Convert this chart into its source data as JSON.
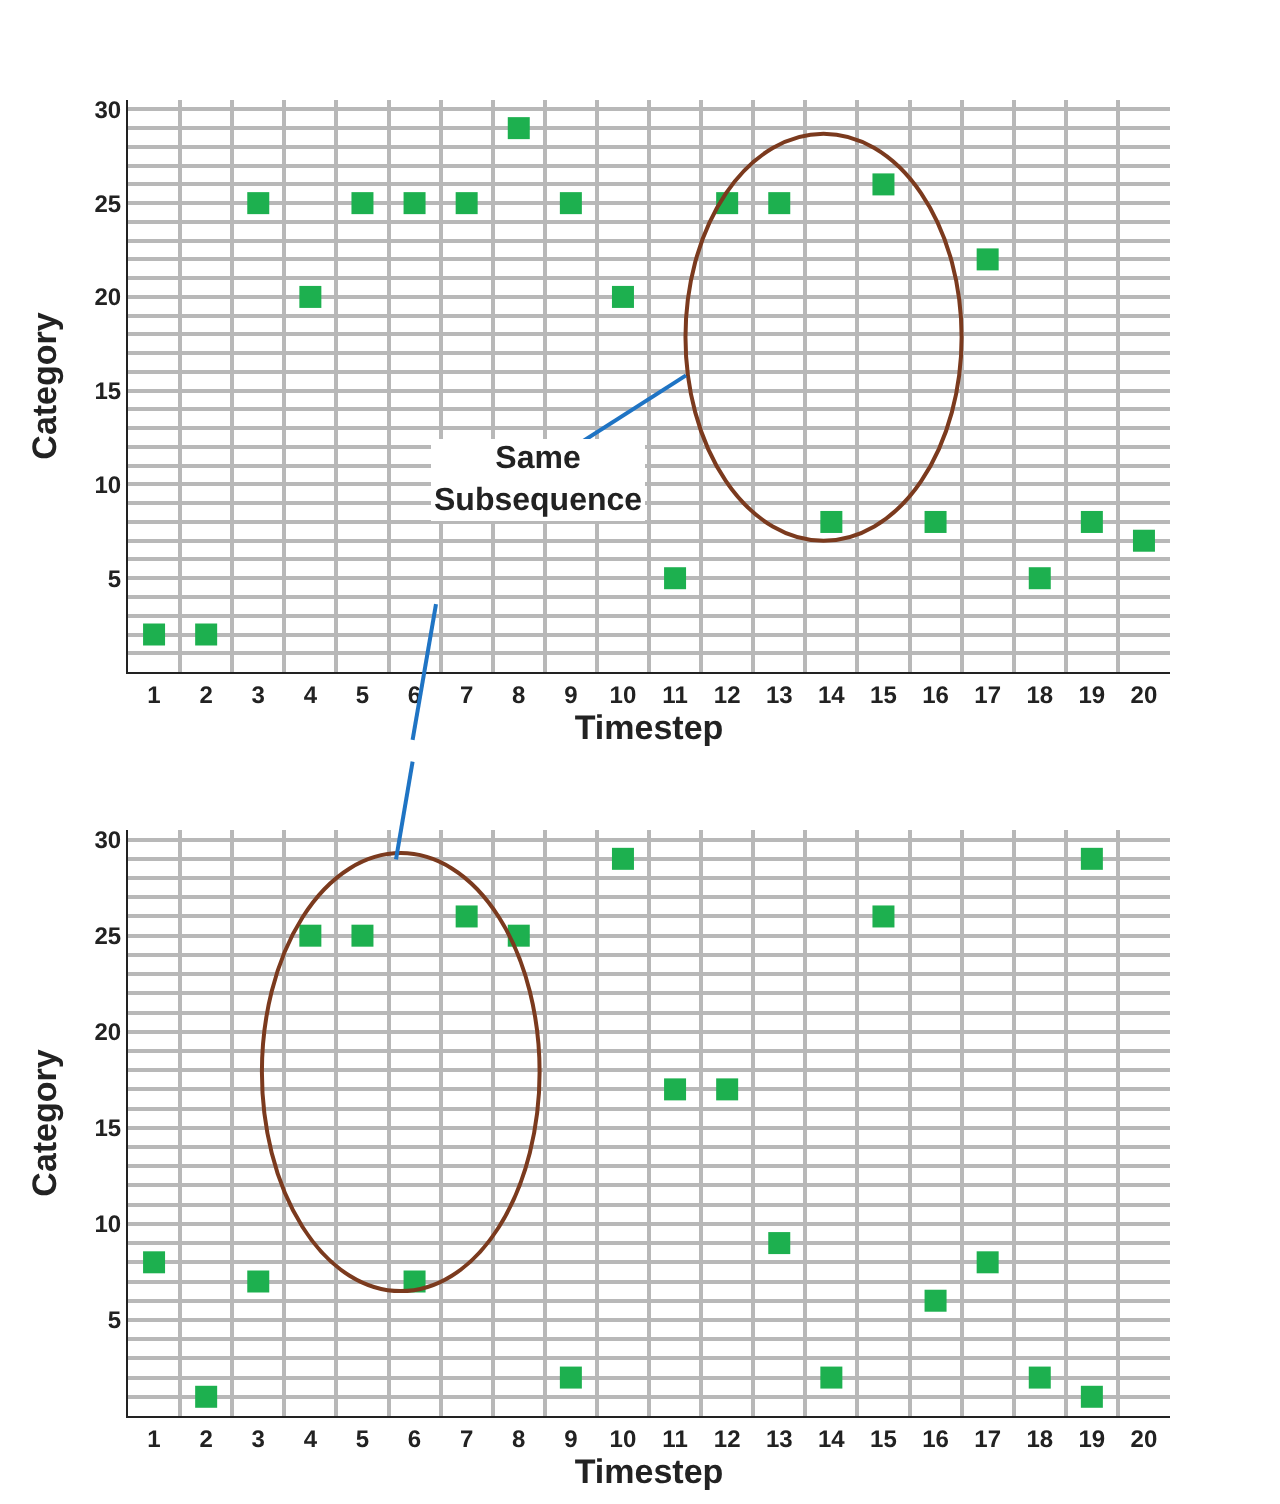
{
  "chart_data": [
    {
      "type": "scatter",
      "xlabel": "Timestep",
      "ylabel": "Category",
      "color": "#1db04f",
      "x": [
        1,
        2,
        3,
        4,
        5,
        6,
        7,
        8,
        9,
        10,
        11,
        12,
        13,
        14,
        15,
        16,
        17,
        18,
        19,
        20
      ],
      "values": [
        2,
        2,
        25,
        20,
        25,
        25,
        25,
        29,
        25,
        20,
        5,
        25,
        25,
        8,
        26,
        8,
        22,
        5,
        8,
        7
      ],
      "xlim": [
        0.5,
        20.5
      ],
      "xticks": [
        1,
        2,
        3,
        4,
        5,
        6,
        7,
        8,
        9,
        10,
        11,
        12,
        13,
        14,
        15,
        16,
        17,
        18,
        19,
        20
      ],
      "ylim": [
        0,
        30.5
      ],
      "yticks": [
        5,
        10,
        15,
        20,
        25,
        30
      ],
      "grid": true,
      "marker": "square",
      "annotations": [
        "Same\nSubsequence"
      ]
    },
    {
      "type": "scatter",
      "xlabel": "Timestep",
      "ylabel": "Category",
      "color": "#1db04f",
      "x": [
        1,
        2,
        3,
        4,
        5,
        6,
        7,
        8,
        9,
        10,
        11,
        12,
        13,
        14,
        15,
        16,
        17,
        18,
        19,
        19
      ],
      "values": [
        8,
        1,
        7,
        25,
        25,
        7,
        26,
        25,
        2,
        29,
        17,
        17,
        9,
        2,
        26,
        6,
        8,
        2,
        29,
        1
      ],
      "xlim": [
        0.5,
        20.5
      ],
      "xticks": [
        1,
        2,
        3,
        4,
        5,
        6,
        7,
        8,
        9,
        10,
        11,
        12,
        13,
        14,
        15,
        16,
        17,
        18,
        19,
        20
      ],
      "ylim": [
        0,
        30.5
      ],
      "yticks": [
        5,
        10,
        15,
        20,
        25,
        30
      ],
      "grid": true,
      "marker": "square"
    }
  ]
}
